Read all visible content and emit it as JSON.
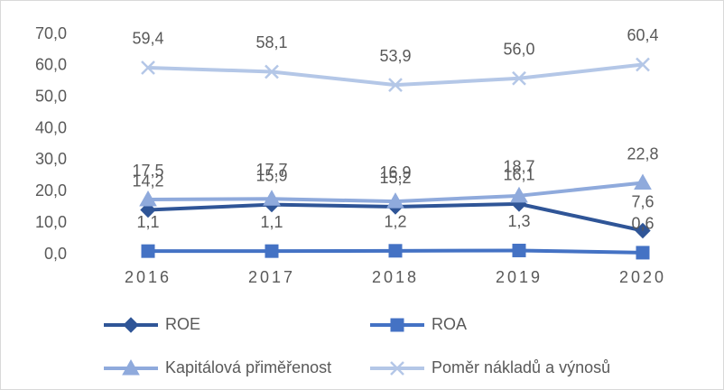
{
  "chart_data": {
    "type": "line",
    "categories": [
      "2016",
      "2017",
      "2018",
      "2019",
      "2020"
    ],
    "ylim": [
      0,
      70
    ],
    "yticks": [
      {
        "value": 0,
        "label": "0,0"
      },
      {
        "value": 10,
        "label": "10,0"
      },
      {
        "value": 20,
        "label": "20,0"
      },
      {
        "value": 30,
        "label": "30,0"
      },
      {
        "value": 40,
        "label": "40,0"
      },
      {
        "value": 50,
        "label": "50,0"
      },
      {
        "value": 60,
        "label": "60,0"
      },
      {
        "value": 70,
        "label": "70,0"
      }
    ],
    "grid": false,
    "legend": "bottom",
    "series": [
      {
        "name": "ROE",
        "color": "#2f5597",
        "marker": "diamond",
        "values": [
          14.2,
          15.9,
          15.2,
          16.1,
          7.6
        ],
        "value_labels": [
          "14,2",
          "15,9",
          "15,2",
          "16,1",
          "7,6"
        ]
      },
      {
        "name": "ROA",
        "color": "#4472c4",
        "marker": "square",
        "values": [
          1.1,
          1.1,
          1.2,
          1.3,
          0.6
        ],
        "value_labels": [
          "1,1",
          "1,1",
          "1,2",
          "1,3",
          "0,6"
        ]
      },
      {
        "name": "Kapitálová přiměřenost",
        "color": "#8faadc",
        "marker": "triangle",
        "values": [
          17.5,
          17.7,
          16.9,
          18.7,
          22.8
        ],
        "value_labels": [
          "17,5",
          "17,7",
          "16,9",
          "18,7",
          "22,8"
        ]
      },
      {
        "name": "Poměr nákladů a výnosů",
        "color": "#b4c7e7",
        "marker": "x",
        "values": [
          59.4,
          58.1,
          53.9,
          56.0,
          60.4
        ],
        "value_labels": [
          "59,4",
          "58,1",
          "53,9",
          "56,0",
          "60,4"
        ]
      }
    ]
  }
}
